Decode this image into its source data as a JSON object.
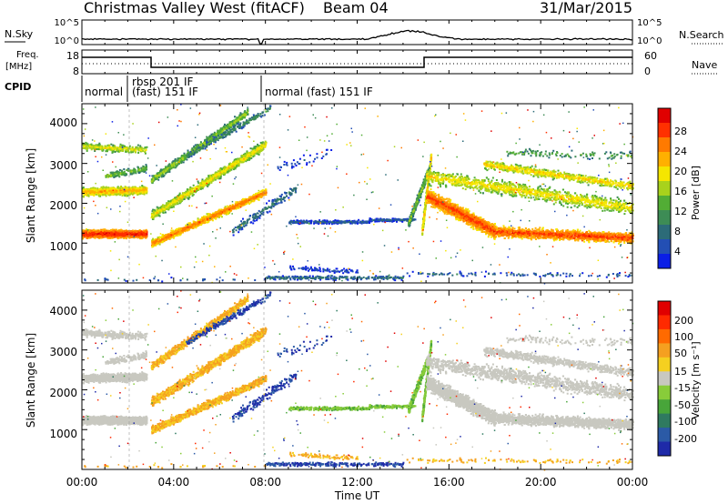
{
  "header": {
    "station": "Christmas Valley West (fitACF)",
    "beam": "Beam 04",
    "date": "31/Mar/2015"
  },
  "top_panels": {
    "nsky_label": "N.Sky",
    "nsearch_label": "N.Search",
    "noise_ticks_left": [
      "10^5",
      "10^0"
    ],
    "noise_ticks_right": [
      "10^5",
      "10^0"
    ],
    "freq_label_line1": "Freq.",
    "freq_label_line2": "[MHz]",
    "freq_ticks": [
      "18",
      "8"
    ],
    "nave_label": "Nave",
    "nave_ticks": [
      "60",
      "0"
    ],
    "cpid_label": "CPID",
    "cpid_segments": [
      "normal",
      "rbsp 201 IF",
      "(fast) 151 IF",
      "normal (fast) 151 IF"
    ]
  },
  "power_panel": {
    "ylabel": "Slant Range [km]",
    "yticks": [
      "4000",
      "3000",
      "2000",
      "1000"
    ],
    "colorbar_label": "Power [dB]",
    "colorbar_ticks": [
      "28",
      "24",
      "20",
      "16",
      "12",
      "8",
      "4"
    ],
    "colors": [
      "#0a1ee6",
      "#234fb4",
      "#2c6b78",
      "#3d8c55",
      "#52ad35",
      "#a8d21c",
      "#f5e600",
      "#ffb000",
      "#ff7a00",
      "#ff3000",
      "#e00000"
    ]
  },
  "velocity_panel": {
    "ylabel": "Slant Range [km]",
    "yticks": [
      "4000",
      "3000",
      "2000",
      "1000"
    ],
    "colorbar_label": "Velocity [m s⁻¹]",
    "colorbar_ticks": [
      "200",
      "100",
      "50",
      "15",
      "-15",
      "-50",
      "-100",
      "-200"
    ],
    "colors": [
      "#1e2aa8",
      "#2b5aa6",
      "#2f7a60",
      "#48a53a",
      "#88cc3a",
      "#c8c8c0",
      "#f5d020",
      "#f5a020",
      "#ff6a00",
      "#ff2a00",
      "#e00000"
    ]
  },
  "time_axis": {
    "label": "Time UT",
    "ticks": [
      "00:00",
      "04:00",
      "08:00",
      "12:00",
      "16:00",
      "20:00",
      "00:00"
    ]
  },
  "chart_data": {
    "type": "heatmap",
    "title": "Christmas Valley West (fitACF) Beam 04 31/Mar/2015",
    "xlabel": "Time UT",
    "xlim": [
      "00:00",
      "24:00"
    ],
    "ylabel": "Slant Range [km]",
    "ylim": [
      0,
      4500
    ],
    "power_range_db": [
      0,
      30
    ],
    "velocity_range": [
      -250,
      250
    ],
    "cpid_transitions_ut": [
      2.25,
      7.8
    ],
    "frequency_steps_ut": [
      3.0,
      15.0
    ],
    "backscatter_bands_power": [
      {
        "name": "ground scatter low",
        "t_start": 0.0,
        "t_end": 2.8,
        "range_start": 1250,
        "range_end": 1250,
        "power": 28
      },
      {
        "name": "mid echo",
        "t_start": 0.0,
        "t_end": 2.8,
        "range_start": 2300,
        "range_end": 2300,
        "power": 22
      },
      {
        "name": "upper echo",
        "t_start": 0.0,
        "t_end": 2.8,
        "range_start": 3400,
        "range_end": 3400,
        "power": 18
      },
      {
        "name": "rising trace 1",
        "t_start": 3.0,
        "t_end": 8.0,
        "range_start": 1000,
        "range_end": 2300,
        "power": 24
      },
      {
        "name": "rising trace 2",
        "t_start": 3.0,
        "t_end": 8.0,
        "range_start": 1800,
        "range_end": 3600,
        "power": 18
      },
      {
        "name": "rising trace 3",
        "t_start": 3.0,
        "t_end": 7.0,
        "range_start": 2700,
        "range_end": 4300,
        "power": 14
      },
      {
        "name": "evening descent",
        "t_start": 15.0,
        "t_end": 24.0,
        "range_start": 2300,
        "range_end": 1150,
        "power": 26
      },
      {
        "name": "evening upper",
        "t_start": 17.5,
        "t_end": 24.0,
        "range_start": 3000,
        "range_end": 2400,
        "power": 20
      }
    ]
  }
}
